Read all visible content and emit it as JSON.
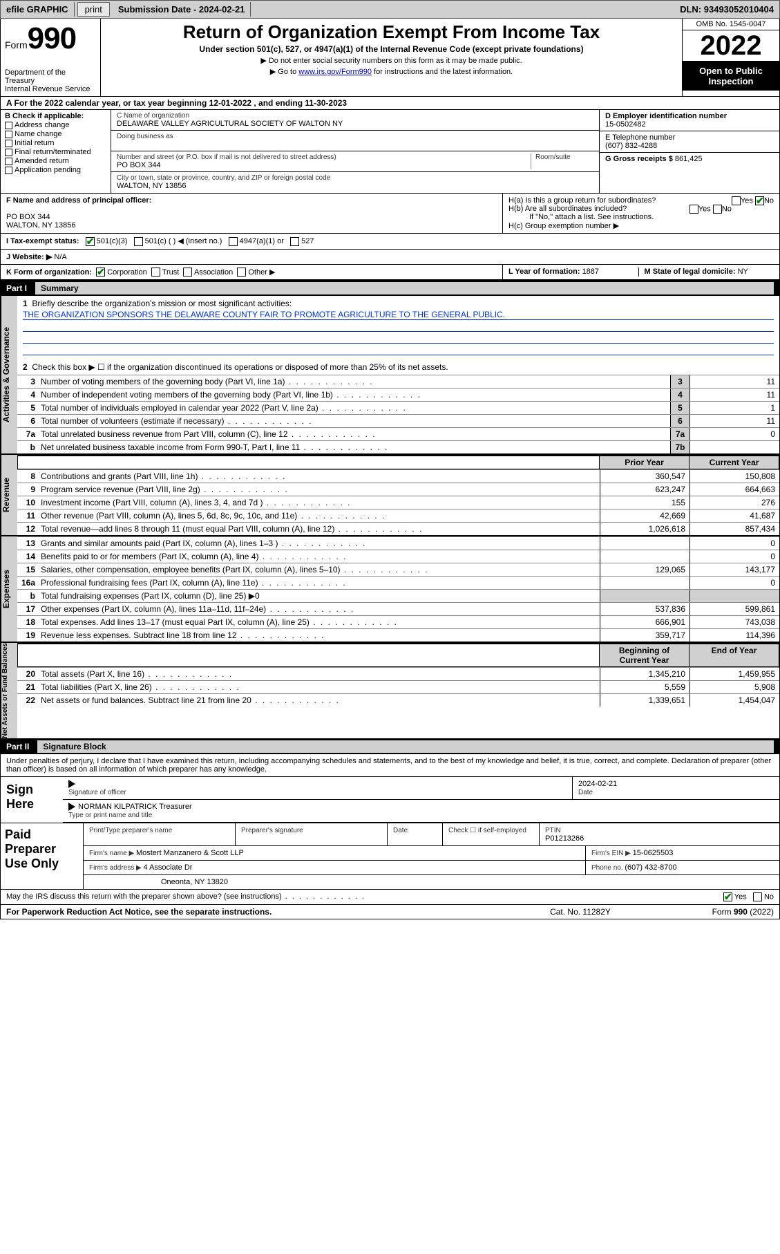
{
  "topbar": {
    "efile": "efile GRAPHIC",
    "print": "print",
    "subdate_label": "Submission Date - ",
    "subdate": "2024-02-21",
    "dln_label": "DLN: ",
    "dln": "93493052010404"
  },
  "header": {
    "form_prefix": "Form",
    "form_num": "990",
    "dept": "Department of the Treasury\nInternal Revenue Service",
    "title": "Return of Organization Exempt From Income Tax",
    "subtitle": "Under section 501(c), 527, or 4947(a)(1) of the Internal Revenue Code (except private foundations)",
    "note1": "▶ Do not enter social security numbers on this form as it may be made public.",
    "note2_pre": "▶ Go to ",
    "note2_link": "www.irs.gov/Form990",
    "note2_post": " for instructions and the latest information.",
    "omb": "OMB No. 1545-0047",
    "year": "2022",
    "openpub": "Open to Public Inspection"
  },
  "row_a": "A For the 2022 calendar year, or tax year beginning 12-01-2022     , and ending 11-30-2023",
  "col_b": {
    "hdr": "B Check if applicable:",
    "items": [
      "Address change",
      "Name change",
      "Initial return",
      "Final return/terminated",
      "Amended return",
      "Application pending"
    ]
  },
  "col_c": {
    "name_lbl": "C Name of organization",
    "name": "DELAWARE VALLEY AGRICULTURAL SOCIETY OF WALTON NY",
    "dba_lbl": "Doing business as",
    "addr_lbl": "Number and street (or P.O. box if mail is not delivered to street address)",
    "room_lbl": "Room/suite",
    "addr": "PO BOX 344",
    "city_lbl": "City or town, state or province, country, and ZIP or foreign postal code",
    "city": "WALTON, NY  13856"
  },
  "col_d": {
    "ein_lbl": "D Employer identification number",
    "ein": "15-0502482",
    "tel_lbl": "E Telephone number",
    "tel": "(607) 832-4288",
    "gross_lbl": "G Gross receipts $ ",
    "gross": "861,425"
  },
  "fgh": {
    "f_lbl": "F Name and address of principal officer:",
    "f_addr": "PO BOX 344\nWALTON, NY  13856",
    "ha": "H(a)  Is this a group return for subordinates?",
    "hb": "H(b)  Are all subordinates included?",
    "hb_note": "If \"No,\" attach a list. See instructions.",
    "hc": "H(c)  Group exemption number ▶",
    "i_lbl": "I  Tax-exempt status:",
    "i_opts": [
      "501(c)(3)",
      "501(c) (  ) ◀ (insert no.)",
      "4947(a)(1) or",
      "527"
    ],
    "j_lbl": "J  Website: ▶",
    "j_val": "N/A",
    "k_lbl": "K Form of organization:",
    "k_opts": [
      "Corporation",
      "Trust",
      "Association",
      "Other ▶"
    ],
    "l_lbl": "L Year of formation: ",
    "l_val": "1887",
    "m_lbl": "M State of legal domicile: ",
    "m_val": "NY",
    "yes": "Yes",
    "no": "No"
  },
  "part1": {
    "hdr_n": "Part I",
    "hdr_t": "Summary",
    "q1": "Briefly describe the organization's mission or most significant activities:",
    "q1_text": "THE ORGANIZATION SPONSORS THE DELAWARE COUNTY FAIR TO PROMOTE AGRICULTURE TO THE GENERAL PUBLIC.",
    "q2": "Check this box ▶ ☐  if the organization discontinued its operations or disposed of more than 25% of its net assets.",
    "side_gov": "Activities & Governance",
    "side_rev": "Revenue",
    "side_exp": "Expenses",
    "side_net": "Net Assets or Fund Balances",
    "col_prior": "Prior Year",
    "col_curr": "Current Year",
    "col_beg": "Beginning of Current Year",
    "col_end": "End of Year",
    "rows_gov": [
      {
        "n": "3",
        "t": "Number of voting members of the governing body (Part VI, line 1a)",
        "box": "3",
        "v": "11"
      },
      {
        "n": "4",
        "t": "Number of independent voting members of the governing body (Part VI, line 1b)",
        "box": "4",
        "v": "11"
      },
      {
        "n": "5",
        "t": "Total number of individuals employed in calendar year 2022 (Part V, line 2a)",
        "box": "5",
        "v": "1"
      },
      {
        "n": "6",
        "t": "Total number of volunteers (estimate if necessary)",
        "box": "6",
        "v": "11"
      },
      {
        "n": "7a",
        "t": "Total unrelated business revenue from Part VIII, column (C), line 12",
        "box": "7a",
        "v": "0"
      },
      {
        "n": "b",
        "t": "Net unrelated business taxable income from Form 990-T, Part I, line 11",
        "box": "7b",
        "v": ""
      }
    ],
    "rows_rev": [
      {
        "n": "8",
        "t": "Contributions and grants (Part VIII, line 1h)",
        "p": "360,547",
        "c": "150,808"
      },
      {
        "n": "9",
        "t": "Program service revenue (Part VIII, line 2g)",
        "p": "623,247",
        "c": "664,663"
      },
      {
        "n": "10",
        "t": "Investment income (Part VIII, column (A), lines 3, 4, and 7d )",
        "p": "155",
        "c": "276"
      },
      {
        "n": "11",
        "t": "Other revenue (Part VIII, column (A), lines 5, 6d, 8c, 9c, 10c, and 11e)",
        "p": "42,669",
        "c": "41,687"
      },
      {
        "n": "12",
        "t": "Total revenue—add lines 8 through 11 (must equal Part VIII, column (A), line 12)",
        "p": "1,026,618",
        "c": "857,434"
      }
    ],
    "rows_exp": [
      {
        "n": "13",
        "t": "Grants and similar amounts paid (Part IX, column (A), lines 1–3 )",
        "p": "",
        "c": "0"
      },
      {
        "n": "14",
        "t": "Benefits paid to or for members (Part IX, column (A), line 4)",
        "p": "",
        "c": "0"
      },
      {
        "n": "15",
        "t": "Salaries, other compensation, employee benefits (Part IX, column (A), lines 5–10)",
        "p": "129,065",
        "c": "143,177"
      },
      {
        "n": "16a",
        "t": "Professional fundraising fees (Part IX, column (A), line 11e)",
        "p": "",
        "c": "0"
      },
      {
        "n": "b",
        "t": "Total fundraising expenses (Part IX, column (D), line 25) ▶0",
        "p": "",
        "c": ""
      },
      {
        "n": "17",
        "t": "Other expenses (Part IX, column (A), lines 11a–11d, 11f–24e)",
        "p": "537,836",
        "c": "599,861"
      },
      {
        "n": "18",
        "t": "Total expenses. Add lines 13–17 (must equal Part IX, column (A), line 25)",
        "p": "666,901",
        "c": "743,038"
      },
      {
        "n": "19",
        "t": "Revenue less expenses. Subtract line 18 from line 12",
        "p": "359,717",
        "c": "114,396"
      }
    ],
    "rows_net": [
      {
        "n": "20",
        "t": "Total assets (Part X, line 16)",
        "p": "1,345,210",
        "c": "1,459,955"
      },
      {
        "n": "21",
        "t": "Total liabilities (Part X, line 26)",
        "p": "5,559",
        "c": "5,908"
      },
      {
        "n": "22",
        "t": "Net assets or fund balances. Subtract line 21 from line 20",
        "p": "1,339,651",
        "c": "1,454,047"
      }
    ]
  },
  "part2": {
    "hdr_n": "Part II",
    "hdr_t": "Signature Block",
    "decl": "Under penalties of perjury, I declare that I have examined this return, including accompanying schedules and statements, and to the best of my knowledge and belief, it is true, correct, and complete. Declaration of preparer (other than officer) is based on all information of which preparer has any knowledge.",
    "sign_here": "Sign Here",
    "sig_officer": "Signature of officer",
    "sig_date": "2024-02-21",
    "date_lbl": "Date",
    "officer": "NORMAN KILPATRICK  Treasurer",
    "officer_lbl": "Type or print name and title",
    "paid": "Paid Preparer Use Only",
    "prep_name_lbl": "Print/Type preparer's name",
    "prep_sig_lbl": "Preparer's signature",
    "check_self": "Check ☐ if self-employed",
    "ptin_lbl": "PTIN",
    "ptin": "P01213266",
    "firm_name_lbl": "Firm's name    ▶ ",
    "firm_name": "Mostert Manzanero & Scott LLP",
    "firm_ein_lbl": "Firm's EIN ▶ ",
    "firm_ein": "15-0625503",
    "firm_addr_lbl": "Firm's address ▶ ",
    "firm_addr1": "4 Associate Dr",
    "firm_addr2": "Oneonta, NY  13820",
    "phone_lbl": "Phone no. ",
    "phone": "(607) 432-8700",
    "discuss": "May the IRS discuss this return with the preparer shown above? (see instructions)"
  },
  "footer": {
    "l": "For Paperwork Reduction Act Notice, see the separate instructions.",
    "m": "Cat. No. 11282Y",
    "r": "Form 990 (2022)"
  }
}
